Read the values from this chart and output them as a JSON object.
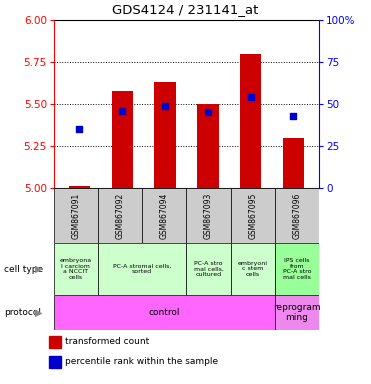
{
  "title": "GDS4124 / 231141_at",
  "samples": [
    "GSM867091",
    "GSM867092",
    "GSM867094",
    "GSM867093",
    "GSM867095",
    "GSM867096"
  ],
  "bar_values": [
    5.01,
    5.58,
    5.63,
    5.5,
    5.8,
    5.3
  ],
  "bar_bottom": 5.0,
  "percentile_values": [
    35,
    46,
    49,
    45,
    54,
    43
  ],
  "ylim_left": [
    5.0,
    6.0
  ],
  "ylim_right": [
    0,
    100
  ],
  "yticks_left": [
    5.0,
    5.25,
    5.5,
    5.75,
    6.0
  ],
  "yticks_right": [
    0,
    25,
    50,
    75,
    100
  ],
  "bar_color": "#cc0000",
  "dot_color": "#0000cc",
  "bar_width": 0.5,
  "sample_bg_color": "#cccccc",
  "cell_type_row_label": "cell type",
  "protocol_row_label": "protocol",
  "legend_bar_label": "transformed count",
  "legend_dot_label": "percentile rank within the sample",
  "cell_groups": [
    {
      "start": 0,
      "end": 1,
      "label": "embryona\nl carciom\na NCCIT\ncells",
      "color": "#ccffcc"
    },
    {
      "start": 1,
      "end": 3,
      "label": "PC-A stromal cells,\nsorted",
      "color": "#ccffcc"
    },
    {
      "start": 3,
      "end": 4,
      "label": "PC-A stro\nmal cells,\ncultured",
      "color": "#ccffcc"
    },
    {
      "start": 4,
      "end": 5,
      "label": "embryoni\nc stem\ncells",
      "color": "#ccffcc"
    },
    {
      "start": 5,
      "end": 6,
      "label": "IPS cells\nfrom\nPC-A stro\nmal cells",
      "color": "#99ff99"
    }
  ],
  "proto_groups": [
    {
      "start": 0,
      "end": 5,
      "label": "control",
      "color": "#ff66ff"
    },
    {
      "start": 5,
      "end": 6,
      "label": "reprogram\nming",
      "color": "#ee88ee"
    }
  ]
}
